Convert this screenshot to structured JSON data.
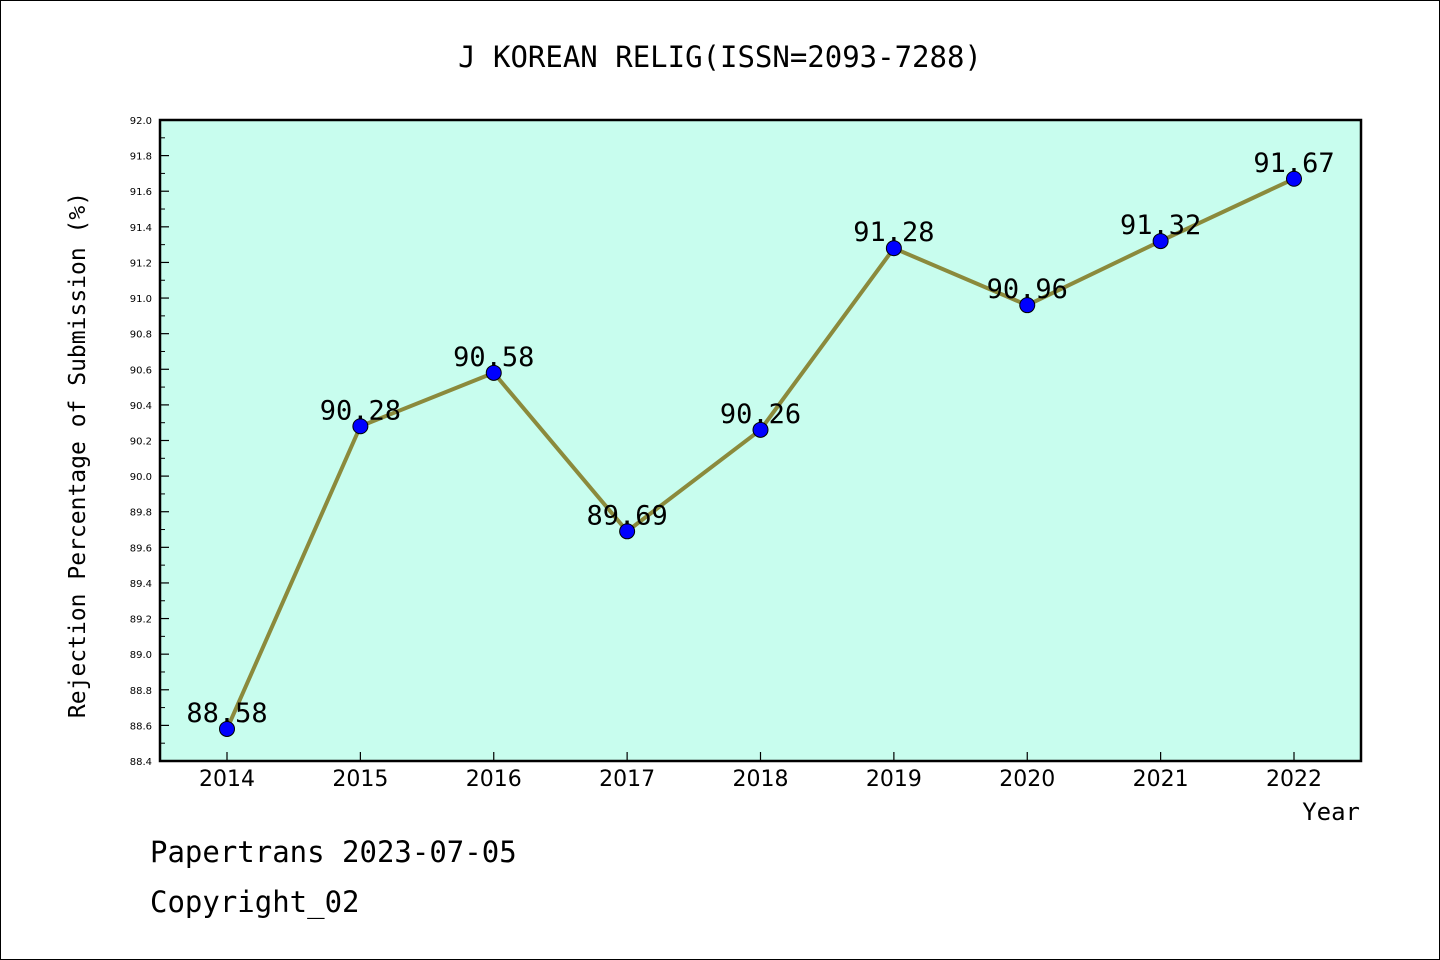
{
  "chart_data": {
    "type": "line",
    "title": "J KOREAN RELIG(ISSN=2093-7288)",
    "xlabel": "Year",
    "ylabel": "Rejection Percentage of Submission (%)",
    "categories": [
      "2014",
      "2015",
      "2016",
      "2017",
      "2018",
      "2019",
      "2020",
      "2021",
      "2022"
    ],
    "values": [
      88.58,
      90.28,
      90.58,
      89.69,
      90.26,
      91.28,
      90.96,
      91.32,
      91.67
    ],
    "data_labels": [
      "88.58",
      "90.28",
      "90.58",
      "89.69",
      "90.26",
      "91.28",
      "90.96",
      "91.32",
      "91.67"
    ],
    "ylim": [
      88.4,
      92.0
    ],
    "ytick_labels": [
      "88.4",
      "88.6",
      "88.8",
      "89.0",
      "89.2",
      "89.4",
      "89.6",
      "89.8",
      "90.0",
      "90.2",
      "90.4",
      "90.6",
      "90.8",
      "91.0",
      "91.2",
      "91.4",
      "91.6",
      "91.8",
      "92.0"
    ],
    "grid": false,
    "plot_background": "#c8fdee",
    "line_color": "#8b8a3c",
    "marker_color": "#0000ff"
  },
  "footer": {
    "line1": "Papertrans 2023-07-05",
    "line2": "Copyright_02"
  }
}
